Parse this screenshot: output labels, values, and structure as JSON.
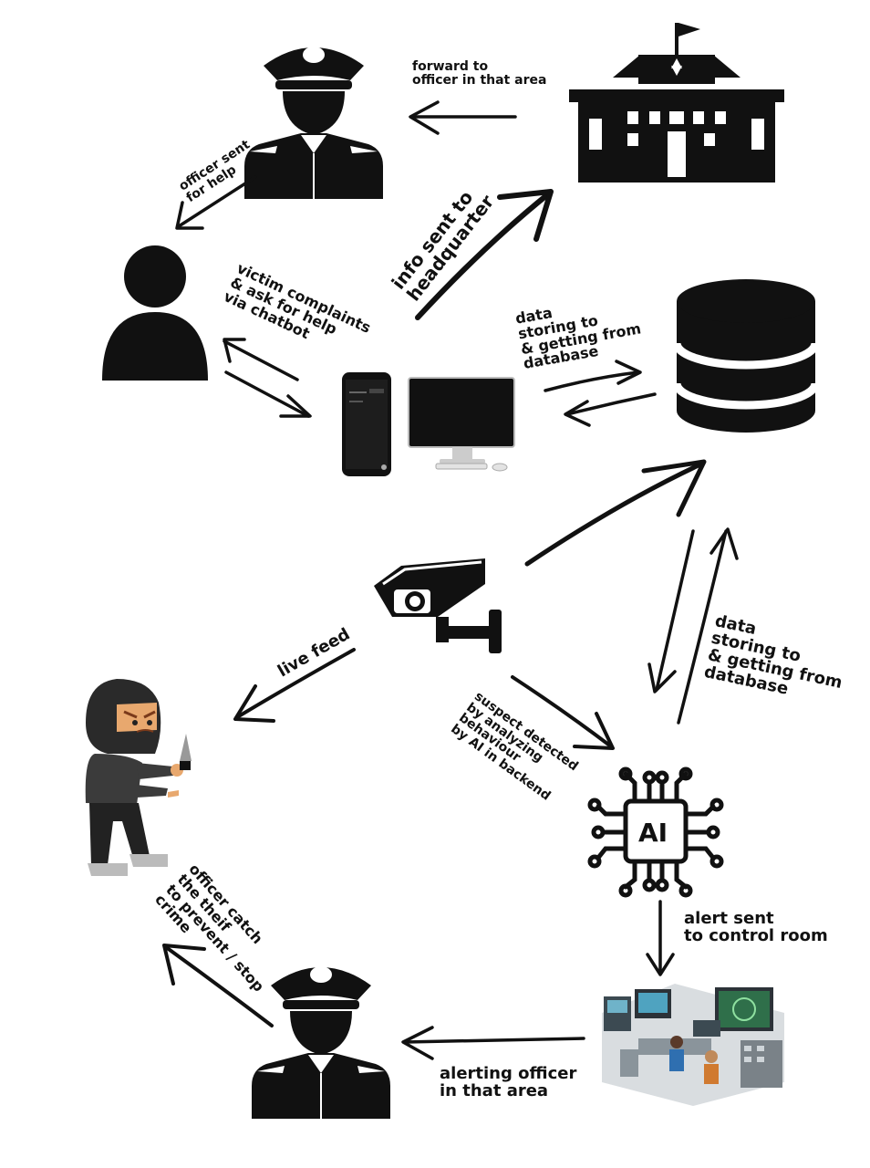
{
  "labels": {
    "forward": "forward to\nofficer in that area",
    "officer_sent": "officer sent\nfor help",
    "info_hq": "info sent to\nheadquarter",
    "victim": "victim complaints\n& ask for help\nvia chatbot",
    "data_top": "data\nstoring to\n& getting from\ndatabase",
    "live_feed": "live feed",
    "data_bottom": "data\nstoring to\n& getting from\ndatabase",
    "suspect": "suspect detected\nby analyzing\nbehaviour\nby AI in backend",
    "ai_chip": "AI",
    "alert_control": "alert sent\nto control room",
    "officer_catch": "officer catch\nthe theif\nto prevent / stop\ncrime",
    "alerting_officer": "alerting officer\nin that area"
  },
  "icons": {
    "officer_top": "police-officer-icon",
    "headquarters": "police-headquarters-icon",
    "victim": "person-icon",
    "database": "database-icon",
    "devices": "phone-and-computer-icon",
    "camera": "cctv-camera-icon",
    "thief": "thief-with-knife-icon",
    "ai": "ai-chip-icon",
    "control_room": "control-room-icon",
    "officer_bottom": "police-officer-icon"
  },
  "colors": {
    "ink": "#111111"
  }
}
